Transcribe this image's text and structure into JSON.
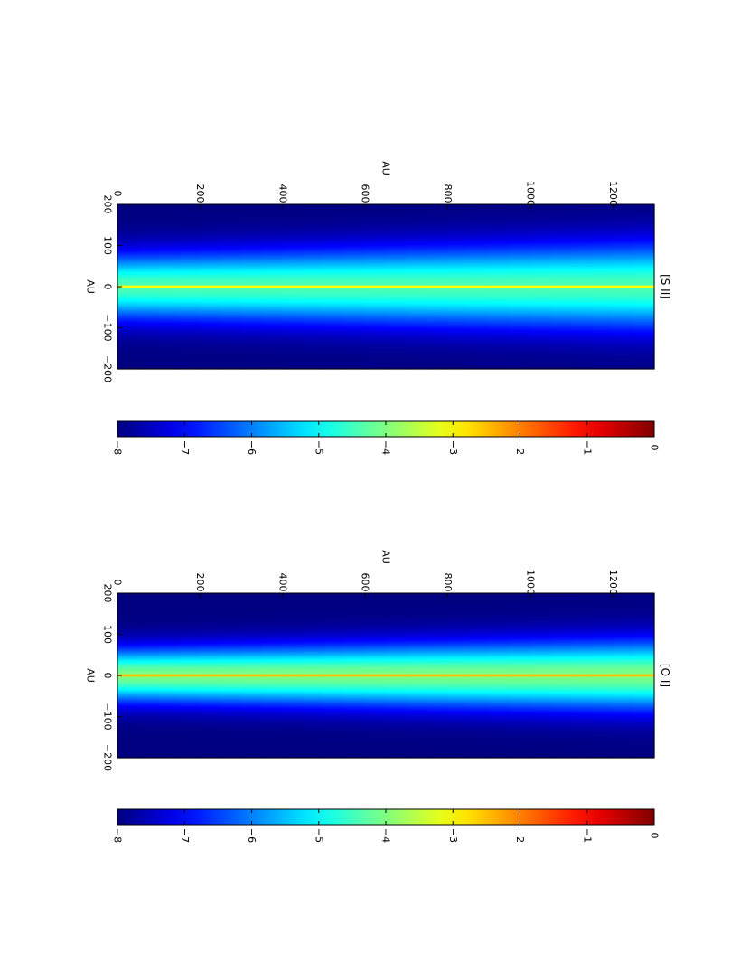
{
  "chart_data": [
    {
      "type": "heatmap",
      "title": "[S II]",
      "xlabel": "AU",
      "ylabel": "AU",
      "x_ticks": [
        -200,
        -100,
        0,
        100,
        200
      ],
      "y_ticks": [
        0,
        200,
        400,
        600,
        800,
        1000,
        1200
      ],
      "x_tick_labels": [
        "−200",
        "−100",
        "0",
        "100",
        "200"
      ],
      "y_tick_labels": [
        "0",
        "200",
        "400",
        "600",
        "800",
        "1000",
        "1200"
      ],
      "xlim": [
        -200,
        200
      ],
      "ylim": [
        0,
        1300
      ],
      "colormap": "jet",
      "colorbar": {
        "range": [
          -8,
          0
        ],
        "ticks": [
          -8,
          -7,
          -6,
          -5,
          -4,
          -3,
          -2,
          -1,
          0
        ],
        "tick_labels": [
          "−8",
          "−7",
          "−6",
          "−5",
          "−4",
          "−3",
          "−2",
          "−1",
          "0"
        ]
      },
      "profile": {
        "peak_value": -2.2,
        "core_halfwidth": 1.5,
        "wing_halfwidth": 55,
        "wing_growth": 0.3
      }
    },
    {
      "type": "heatmap",
      "title": "[O I]",
      "xlabel": "AU",
      "ylabel": "AU",
      "x_ticks": [
        -200,
        -100,
        0,
        100,
        200
      ],
      "y_ticks": [
        0,
        200,
        400,
        600,
        800,
        1000,
        1200
      ],
      "x_tick_labels": [
        "−200",
        "−100",
        "0",
        "100",
        "200"
      ],
      "y_tick_labels": [
        "0",
        "200",
        "400",
        "600",
        "800",
        "1000",
        "1200"
      ],
      "xlim": [
        -200,
        200
      ],
      "ylim": [
        0,
        1300
      ],
      "colormap": "jet",
      "colorbar": {
        "range": [
          -8,
          0
        ],
        "ticks": [
          -8,
          -7,
          -6,
          -5,
          -4,
          -3,
          -2,
          -1,
          0
        ],
        "tick_labels": [
          "−8",
          "−7",
          "−6",
          "−5",
          "−4",
          "−3",
          "−2",
          "−1",
          "0"
        ]
      },
      "profile": {
        "peak_value": -1.6,
        "core_halfwidth": 1.5,
        "wing_halfwidth": 45,
        "wing_growth": 0.3
      }
    }
  ]
}
